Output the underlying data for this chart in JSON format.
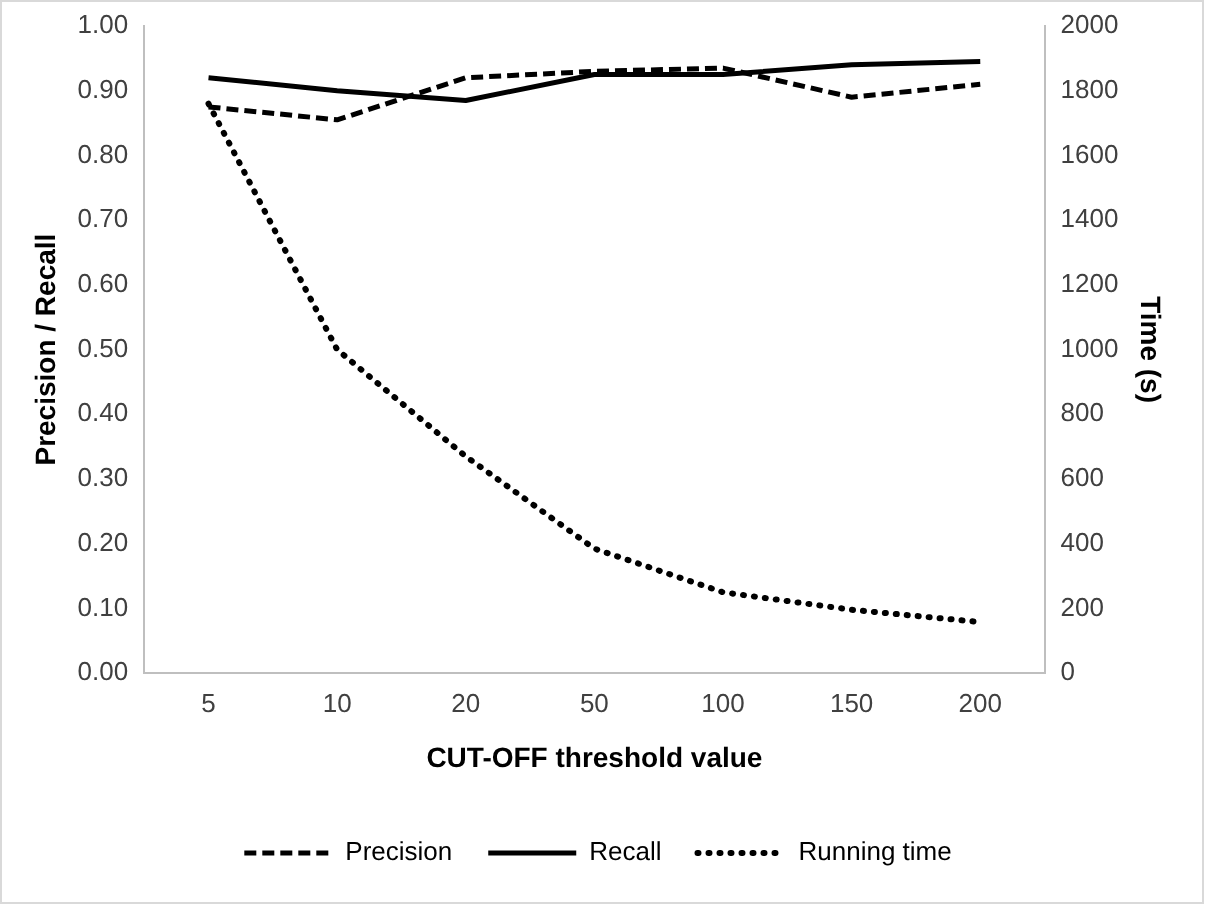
{
  "chart_data": {
    "type": "line",
    "xlabel": "CUT-OFF threshold value",
    "ylabel": "Precision / Recall",
    "y2label": "Time (s)",
    "categories": [
      "5",
      "10",
      "20",
      "50",
      "100",
      "150",
      "200"
    ],
    "series": [
      {
        "name": "Precision",
        "color": "#000000",
        "line_style": "dashed",
        "values": [
          0.875,
          0.855,
          0.92,
          0.93,
          0.935,
          0.89,
          0.91
        ]
      },
      {
        "name": "Recall",
        "color": "#000000",
        "line_style": "solid",
        "values": [
          0.92,
          0.9,
          0.885,
          0.925,
          0.925,
          0.94,
          0.945
        ]
      },
      {
        "name": "Running time",
        "color": "#000000",
        "line_style": "dotted",
        "axis": "y2",
        "values": [
          1760,
          1000,
          670,
          385,
          250,
          196,
          158
        ]
      }
    ],
    "ylim": [
      0,
      1
    ],
    "yticks": [
      {
        "value": 0,
        "label": "0.00"
      },
      {
        "value": 0.1,
        "label": "0.10"
      },
      {
        "value": 0.2,
        "label": "0.20"
      },
      {
        "value": 0.3,
        "label": "0.30"
      },
      {
        "value": 0.4,
        "label": "0.40"
      },
      {
        "value": 0.5,
        "label": "0.50"
      },
      {
        "value": 0.6,
        "label": "0.60"
      },
      {
        "value": 0.7,
        "label": "0.70"
      },
      {
        "value": 0.8,
        "label": "0.80"
      },
      {
        "value": 0.9,
        "label": "0.90"
      },
      {
        "value": 1,
        "label": "1.00"
      }
    ],
    "y2lim": [
      0,
      2000
    ],
    "y2ticks": [
      0,
      200,
      400,
      600,
      800,
      1000,
      1200,
      1400,
      1600,
      1800,
      2000
    ],
    "grid": false,
    "legend": "bottom",
    "marker": "none"
  }
}
